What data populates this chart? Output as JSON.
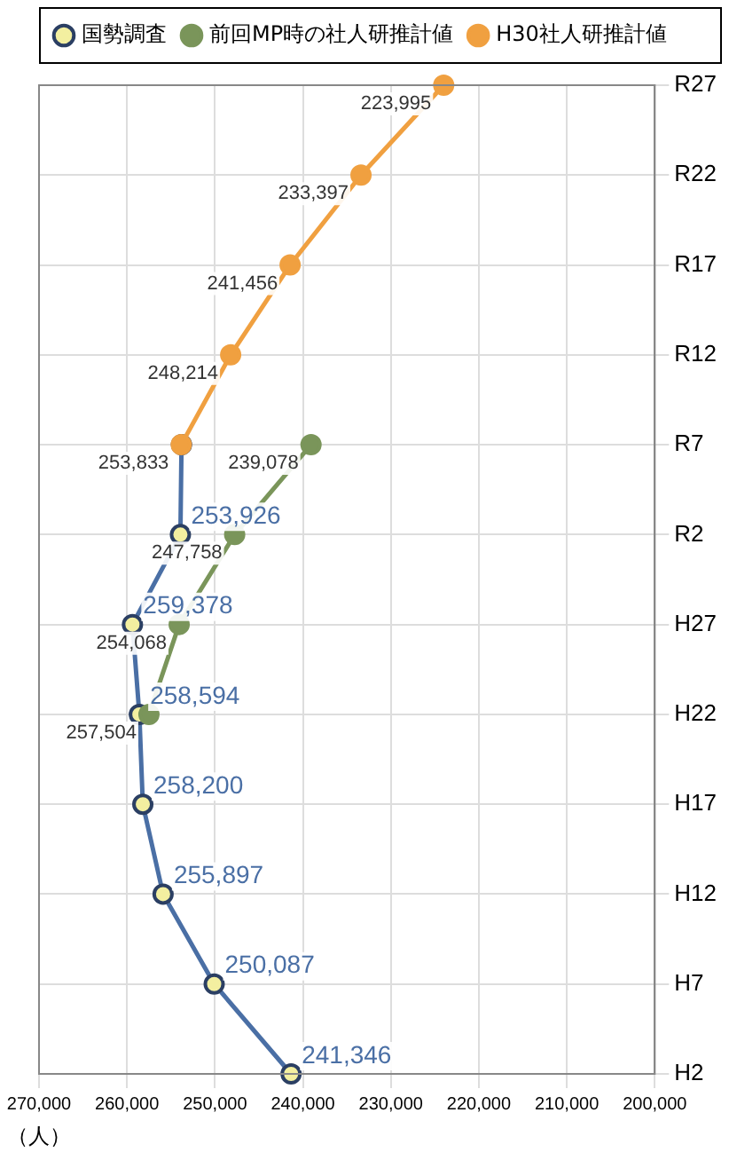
{
  "chart_data": {
    "type": "line",
    "orientation": "horizontal",
    "xlabel": "（人）",
    "categories": [
      "R27",
      "R22",
      "R17",
      "R12",
      "R7",
      "R2",
      "H27",
      "H22",
      "H17",
      "H12",
      "H7",
      "H2"
    ],
    "series": [
      {
        "name": "国勢調査",
        "color": "#4a6fa5",
        "values": [
          null,
          null,
          null,
          null,
          253800,
          253926,
          259378,
          258594,
          258200,
          255897,
          250087,
          241346
        ],
        "value_labels": [
          null,
          null,
          null,
          null,
          null,
          "253,926",
          "259,378",
          "258,594",
          "258,200",
          "255,897",
          "250,087",
          "241,346"
        ]
      },
      {
        "name": "前回MP時の社人研推計値",
        "color": "#7a955a",
        "values": [
          null,
          null,
          null,
          null,
          239078,
          247758,
          254068,
          257504,
          null,
          null,
          null,
          null
        ],
        "value_labels": [
          null,
          null,
          null,
          null,
          "239,078",
          "247,758",
          "254,068",
          "257,504",
          null,
          null,
          null,
          null
        ]
      },
      {
        "name": "H30社人研推計値",
        "color": "#f0a040",
        "values": [
          223995,
          233397,
          241456,
          248214,
          253833,
          null,
          null,
          null,
          null,
          null,
          null,
          null
        ],
        "value_labels": [
          "223,995",
          "233,397",
          "241,456",
          "248,214",
          "253,833",
          null,
          null,
          null,
          null,
          null,
          null,
          null
        ]
      }
    ],
    "xlim": [
      270000,
      200000
    ],
    "xticks": [
      {
        "value": 200000,
        "label": "200,000"
      },
      {
        "value": 210000,
        "label": "210,000"
      },
      {
        "value": 220000,
        "label": "220,000"
      },
      {
        "value": 230000,
        "label": "230,000"
      },
      {
        "value": 240000,
        "label": "240,000"
      },
      {
        "value": 250000,
        "label": "250,000"
      },
      {
        "value": 260000,
        "label": "260,000"
      },
      {
        "value": 270000,
        "label": "270,000"
      }
    ],
    "grid": true,
    "legend": "top left",
    "marker": "circle",
    "line_style": "solid"
  }
}
